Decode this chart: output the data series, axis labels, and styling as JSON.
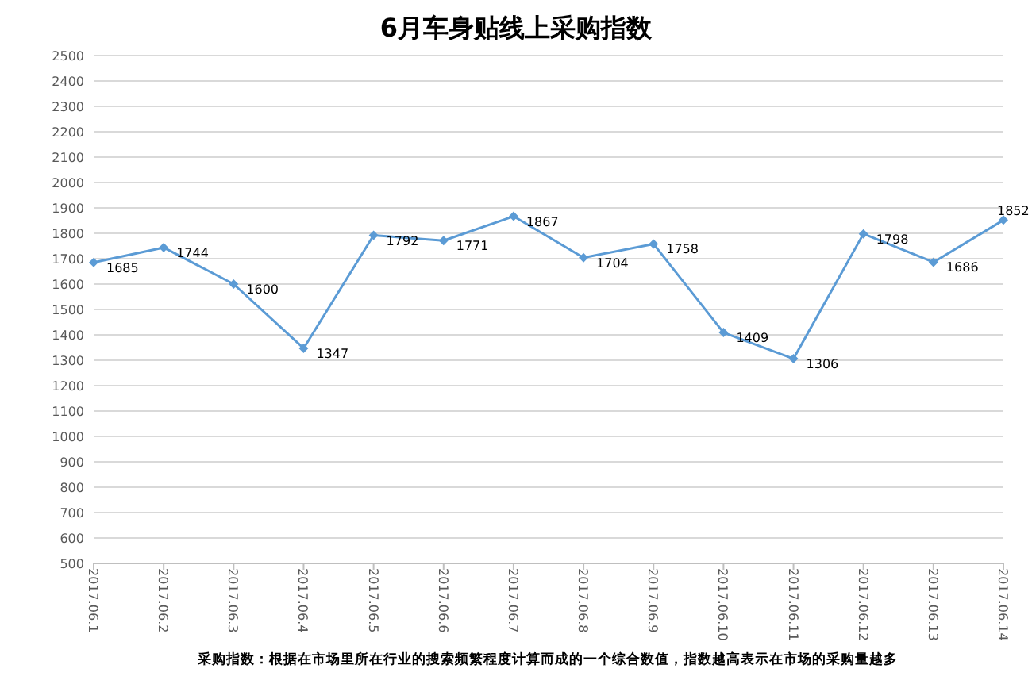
{
  "chart_data": {
    "type": "line",
    "title": "6月车身贴线上采购指数",
    "categories": [
      "2017.06.1",
      "2017.06.2",
      "2017.06.3",
      "2017.06.4",
      "2017.06.5",
      "2017.06.6",
      "2017.06.7",
      "2017.06.8",
      "2017.06.9",
      "2017.06.10",
      "2017.06.11",
      "2017.06.12",
      "2017.06.13",
      "2017.06.14"
    ],
    "values": [
      1685,
      1744,
      1600,
      1347,
      1792,
      1771,
      1867,
      1704,
      1758,
      1409,
      1306,
      1798,
      1686,
      1852
    ],
    "color": "#5b9bd5",
    "marker": "diamond",
    "data_labels": true,
    "grid": "y",
    "ylim": [
      500,
      2500
    ],
    "yticks": [
      500,
      600,
      700,
      800,
      900,
      1000,
      1100,
      1200,
      1300,
      1400,
      1500,
      1600,
      1700,
      1800,
      1900,
      2000,
      2100,
      2200,
      2300,
      2400,
      2500
    ],
    "annotations": [
      "采购指数：根据在市场里所在行业的搜索频繁程度计算而成的一个综合数值，指数越高表示在市场的采购量越多"
    ]
  }
}
